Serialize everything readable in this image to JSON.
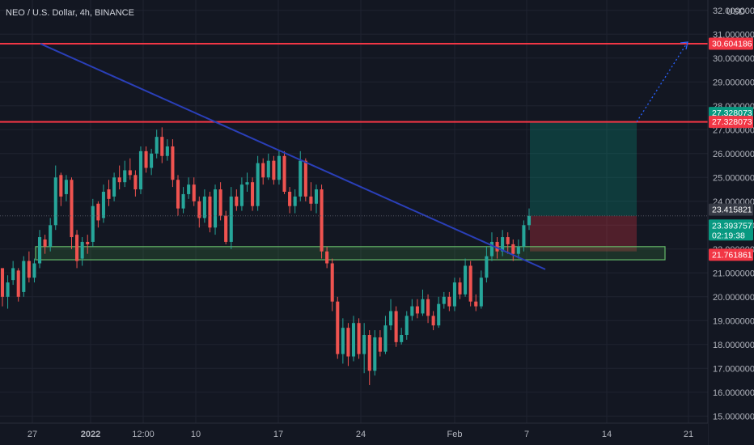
{
  "chart_data": {
    "type": "candlestick",
    "symbol_title": "NEO / U.S. Dollar, 4h, BINANCE",
    "currency": "USD",
    "x_ticks": [
      "27",
      "2022",
      "12:00",
      "10",
      "17",
      "24",
      "Feb",
      "7",
      "14",
      "21"
    ],
    "y_ticks": [
      "32.000000",
      "31.000000",
      "30.000000",
      "29.000000",
      "28.000000",
      "27.000000",
      "26.000000",
      "25.000000",
      "24.000000",
      "23.000000",
      "22.000000",
      "21.000000",
      "20.000000",
      "19.000000",
      "18.000000",
      "17.000000",
      "16.000000",
      "15.000000"
    ],
    "ylim": [
      14.6,
      32.2
    ],
    "price_tags": [
      {
        "label": "30.604186",
        "value": 30.604186,
        "color": "#f23645"
      },
      {
        "label": "27.328073",
        "value": 27.7,
        "color": "#089981"
      },
      {
        "label": "27.328073",
        "value": 27.328073,
        "color": "#f23645"
      },
      {
        "label": "23.415821",
        "value": 23.65,
        "color": "#363a45"
      },
      {
        "label": "23.393757",
        "value": 23.0,
        "color": "#089981",
        "sub": "02:19:38"
      },
      {
        "label": "21.761861",
        "value": 21.761861,
        "color": "#f23645"
      }
    ],
    "resistance_levels": [
      30.604186,
      27.328073
    ],
    "support_zone": [
      21.55,
      22.1
    ],
    "position": {
      "entry": 23.39,
      "target": 27.328073,
      "stop": 21.9
    },
    "trendline": {
      "from": {
        "x": "Dec 27",
        "y": 30.6
      },
      "to": {
        "x": "Feb 8",
        "y": 21.15
      }
    },
    "projection": {
      "from": 27.328073,
      "to": 30.604186
    },
    "candles": [
      [
        21.2,
        20.0,
        20.8,
        19.6
      ],
      [
        20.0,
        20.6,
        20.9,
        19.5
      ],
      [
        20.7,
        21.2,
        21.5,
        20.5
      ],
      [
        21.1,
        20.0,
        21.2,
        19.8
      ],
      [
        20.2,
        21.5,
        21.7,
        20.0
      ],
      [
        21.5,
        20.8,
        21.9,
        20.6
      ],
      [
        20.8,
        21.4,
        21.6,
        20.6
      ],
      [
        21.4,
        22.5,
        22.8,
        21.2
      ],
      [
        22.4,
        22.1,
        22.6,
        21.8
      ],
      [
        22.1,
        23.0,
        23.3,
        21.9
      ],
      [
        23.0,
        25.0,
        25.5,
        22.8
      ],
      [
        25.1,
        24.2,
        25.2,
        23.8
      ],
      [
        24.3,
        24.9,
        25.1,
        24.0
      ],
      [
        24.9,
        22.5,
        25.0,
        22.0
      ],
      [
        22.6,
        21.5,
        22.8,
        21.2
      ],
      [
        21.6,
        22.3,
        22.5,
        21.3
      ],
      [
        22.3,
        22.2,
        22.6,
        21.8
      ],
      [
        22.3,
        23.8,
        24.1,
        22.1
      ],
      [
        23.9,
        23.2,
        24.0,
        22.9
      ],
      [
        23.3,
        24.4,
        24.7,
        23.1
      ],
      [
        24.5,
        24.1,
        24.9,
        23.8
      ],
      [
        24.2,
        25.0,
        25.2,
        24.0
      ],
      [
        25.0,
        24.8,
        25.5,
        24.5
      ],
      [
        24.8,
        25.3,
        25.7,
        24.6
      ],
      [
        25.3,
        25.1,
        25.8,
        24.9
      ],
      [
        25.1,
        24.5,
        25.3,
        24.2
      ],
      [
        24.5,
        26.1,
        26.3,
        24.3
      ],
      [
        26.1,
        25.4,
        26.3,
        25.2
      ],
      [
        25.4,
        26.0,
        26.2,
        25.1
      ],
      [
        26.0,
        26.7,
        27.0,
        25.8
      ],
      [
        26.7,
        25.9,
        27.1,
        25.6
      ],
      [
        25.9,
        26.3,
        26.6,
        25.7
      ],
      [
        26.3,
        24.9,
        26.6,
        24.6
      ],
      [
        24.9,
        23.7,
        25.1,
        23.4
      ],
      [
        23.7,
        24.3,
        24.6,
        23.5
      ],
      [
        24.3,
        24.7,
        25.0,
        24.1
      ],
      [
        24.7,
        24.0,
        25.0,
        23.8
      ],
      [
        24.0,
        23.3,
        24.2,
        22.9
      ],
      [
        23.3,
        24.2,
        24.5,
        23.1
      ],
      [
        24.2,
        22.9,
        24.4,
        22.7
      ],
      [
        22.9,
        24.5,
        24.7,
        22.6
      ],
      [
        24.5,
        23.4,
        24.8,
        23.2
      ],
      [
        23.4,
        22.3,
        23.6,
        22.2
      ],
      [
        22.3,
        24.2,
        24.6,
        22.0
      ],
      [
        24.2,
        23.8,
        24.5,
        23.6
      ],
      [
        23.8,
        24.7,
        25.0,
        23.6
      ],
      [
        24.7,
        24.8,
        25.2,
        24.4
      ],
      [
        24.8,
        23.8,
        25.0,
        23.6
      ],
      [
        23.8,
        25.6,
        25.9,
        23.6
      ],
      [
        25.6,
        25.0,
        25.8,
        24.7
      ],
      [
        25.0,
        25.7,
        26.0,
        24.9
      ],
      [
        25.7,
        24.9,
        25.9,
        24.7
      ],
      [
        24.9,
        25.9,
        26.1,
        24.7
      ],
      [
        25.9,
        24.4,
        26.1,
        24.3
      ],
      [
        24.4,
        23.8,
        24.6,
        23.5
      ],
      [
        23.8,
        24.2,
        24.5,
        23.5
      ],
      [
        24.2,
        25.7,
        26.1,
        24.0
      ],
      [
        25.7,
        24.2,
        25.8,
        24.0
      ],
      [
        24.2,
        23.9,
        24.8,
        23.6
      ],
      [
        23.9,
        24.5,
        24.7,
        23.5
      ],
      [
        24.5,
        21.9,
        24.7,
        21.6
      ],
      [
        21.9,
        21.4,
        22.1,
        21.2
      ],
      [
        21.4,
        19.8,
        21.6,
        19.4
      ],
      [
        19.8,
        17.6,
        20.0,
        17.4
      ],
      [
        17.6,
        18.7,
        19.1,
        17.2
      ],
      [
        18.7,
        17.5,
        18.9,
        17.1
      ],
      [
        17.5,
        18.9,
        19.2,
        17.3
      ],
      [
        18.9,
        17.6,
        19.1,
        17.4
      ],
      [
        17.6,
        18.4,
        18.9,
        16.8
      ],
      [
        18.4,
        16.9,
        18.6,
        16.3
      ],
      [
        16.9,
        18.3,
        18.6,
        16.7
      ],
      [
        18.3,
        17.7,
        18.6,
        17.5
      ],
      [
        17.7,
        18.8,
        19.2,
        17.6
      ],
      [
        18.8,
        19.4,
        19.9,
        18.6
      ],
      [
        19.4,
        18.1,
        19.6,
        17.9
      ],
      [
        18.1,
        18.4,
        18.7,
        18.0
      ],
      [
        18.4,
        19.2,
        19.4,
        18.2
      ],
      [
        19.2,
        19.6,
        19.9,
        19.0
      ],
      [
        19.6,
        19.3,
        19.9,
        19.1
      ],
      [
        19.3,
        19.9,
        20.3,
        19.2
      ],
      [
        19.9,
        19.2,
        20.1,
        18.9
      ],
      [
        19.2,
        18.8,
        19.4,
        18.6
      ],
      [
        18.8,
        19.7,
        20.0,
        18.7
      ],
      [
        19.7,
        20.0,
        20.2,
        19.5
      ],
      [
        20.0,
        19.6,
        20.2,
        19.4
      ],
      [
        19.6,
        20.6,
        20.8,
        19.4
      ],
      [
        20.6,
        20.1,
        20.8,
        19.9
      ],
      [
        20.1,
        21.3,
        21.6,
        20.0
      ],
      [
        21.3,
        19.8,
        21.5,
        19.6
      ],
      [
        19.8,
        19.6,
        20.1,
        19.4
      ],
      [
        19.6,
        20.8,
        21.1,
        19.5
      ],
      [
        20.8,
        21.7,
        22.1,
        20.6
      ],
      [
        21.7,
        22.3,
        22.7,
        21.5
      ],
      [
        22.3,
        21.9,
        22.5,
        21.6
      ],
      [
        21.9,
        22.5,
        22.8,
        21.7
      ],
      [
        22.5,
        22.2,
        22.7,
        21.8
      ],
      [
        22.2,
        21.8,
        22.4,
        21.5
      ],
      [
        21.8,
        22.1,
        22.4,
        21.6
      ],
      [
        22.1,
        23.0,
        23.2,
        21.9
      ],
      [
        23.0,
        23.39,
        23.7,
        22.8
      ]
    ]
  }
}
